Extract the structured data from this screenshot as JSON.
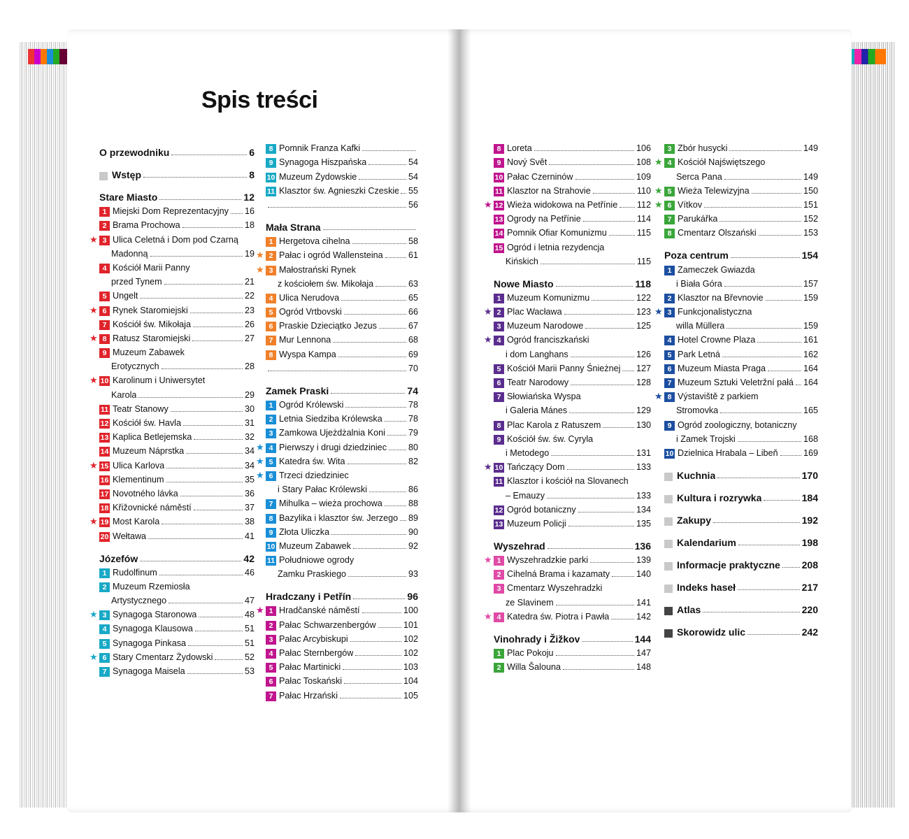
{
  "title": "Spis treści",
  "colors": {
    "stare": "#e0242b",
    "jozefow": "#19a9c6",
    "praga": "#1a8fd6",
    "mala": "#f0802a",
    "hrad": "#c0158e",
    "loreta": "#c0158e",
    "nowe": "#5a2d8e",
    "wysz": "#e04aa6",
    "vino": "#3aa63a",
    "poza": "#1d4fa0",
    "zizkov": "#3aa63a",
    "grey": "#c8c8c8",
    "dark": "#444444"
  },
  "columns": [
    [
      {
        "kind": "sec",
        "sq": "none",
        "text": "O przewodniku",
        "page": "6",
        "first": true
      },
      {
        "kind": "sec",
        "sq": "grey",
        "text": "Wstęp",
        "page": "8"
      },
      {
        "kind": "sec",
        "sq": "none",
        "text": "Stare Miasto",
        "page": "12"
      },
      {
        "kind": "e",
        "c": "stare",
        "n": "1",
        "text": "Miejski Dom Reprezentacyjny",
        "page": "16"
      },
      {
        "kind": "e",
        "c": "stare",
        "n": "2",
        "text": "Brama Prochowa",
        "page": "18"
      },
      {
        "kind": "e",
        "c": "stare",
        "n": "3",
        "star": "★",
        "text": "Ulica Celetná i Dom pod Czarną",
        "text2": "Madonną",
        "page": "19"
      },
      {
        "kind": "e",
        "c": "stare",
        "n": "4",
        "text": "Kościół Marii Panny",
        "text2": "przed Tynem",
        "page": "21"
      },
      {
        "kind": "e",
        "c": "stare",
        "n": "5",
        "text": "Ungelt",
        "page": "22"
      },
      {
        "kind": "e",
        "c": "stare",
        "n": "6",
        "star": "★",
        "text": "Rynek Staromiejski",
        "page": "23"
      },
      {
        "kind": "e",
        "c": "stare",
        "n": "7",
        "text": "Kościół św. Mikołaja",
        "page": "26"
      },
      {
        "kind": "e",
        "c": "stare",
        "n": "8",
        "star": "★",
        "text": "Ratusz Staromiejski",
        "page": "27"
      },
      {
        "kind": "e",
        "c": "stare",
        "n": "9",
        "text": "Muzeum Zabawek",
        "text2": "Erotycznych",
        "page": "28"
      },
      {
        "kind": "e",
        "c": "stare",
        "n": "10",
        "star": "★",
        "text": "Karolinum i Uniwersytet",
        "text2": "Karola",
        "page": "29"
      },
      {
        "kind": "e",
        "c": "stare",
        "n": "11",
        "text": "Teatr Stanowy",
        "page": "30"
      },
      {
        "kind": "e",
        "c": "stare",
        "n": "12",
        "text": "Kościół św. Havla",
        "page": "31"
      },
      {
        "kind": "e",
        "c": "stare",
        "n": "13",
        "text": "Kaplica Betlejemska",
        "page": "32"
      },
      {
        "kind": "e",
        "c": "stare",
        "n": "14",
        "text": "Muzeum Náprstka",
        "page": "34"
      },
      {
        "kind": "e",
        "c": "stare",
        "n": "15",
        "star": "★",
        "text": "Ulica Karlova",
        "page": "34"
      },
      {
        "kind": "e",
        "c": "stare",
        "n": "16",
        "text": "Klementinum",
        "page": "35"
      },
      {
        "kind": "e",
        "c": "stare",
        "n": "17",
        "text": "Novotného lávka",
        "page": "36"
      },
      {
        "kind": "e",
        "c": "stare",
        "n": "18",
        "text": "Křižovnické náměstí",
        "page": "37"
      },
      {
        "kind": "e",
        "c": "stare",
        "n": "19",
        "star": "★",
        "text": "Most Karola",
        "page": "38"
      },
      {
        "kind": "e",
        "c": "stare",
        "n": "20",
        "text": "Wełtawa",
        "page": "41"
      },
      {
        "kind": "sec",
        "sq": "none",
        "text": "Józefów",
        "page": "42"
      },
      {
        "kind": "e",
        "c": "jozefow",
        "n": "1",
        "text": "Rudolfinum",
        "page": "46"
      },
      {
        "kind": "e",
        "c": "jozefow",
        "n": "2",
        "text": "Muzeum Rzemiosła",
        "text2": "Artystycznego",
        "page": "47"
      },
      {
        "kind": "e",
        "c": "jozefow",
        "n": "3",
        "star": "★",
        "text": "Synagoga Staronowa",
        "page": "48"
      },
      {
        "kind": "e",
        "c": "jozefow",
        "n": "4",
        "text": "Synagoga Klausowa",
        "page": "51"
      },
      {
        "kind": "e",
        "c": "jozefow",
        "n": "5",
        "text": "Synagoga Pinkasa",
        "page": "51"
      },
      {
        "kind": "e",
        "c": "jozefow",
        "n": "6",
        "star": "★",
        "text": "Stary Cmentarz Żydowski",
        "page": "52"
      },
      {
        "kind": "e",
        "c": "jozefow",
        "n": "7",
        "text": "Synagoga Maisela",
        "page": "53"
      }
    ],
    [
      {
        "kind": "e",
        "c": "jozefow",
        "n": "8",
        "text": "Pomnik Franza Kafki",
        "page": ""
      },
      {
        "kind": "e",
        "c": "jozefow",
        "n": "9",
        "text": "Synagoga Hiszpańska",
        "page": "54"
      },
      {
        "kind": "e",
        "c": "jozefow",
        "n": "10",
        "text": "Muzeum Żydowskie",
        "page": "54"
      },
      {
        "kind": "e",
        "c": "jozefow",
        "n": "11",
        "text": "Klasztor św. Agnieszki Czeskiej",
        "page": "55"
      },
      {
        "kind": "e",
        "c": "jozefow",
        "n": "",
        "text": "",
        "page": "56",
        "blank": true
      },
      {
        "kind": "sec",
        "sq": "none",
        "text": "Mała Strana",
        "page": ""
      },
      {
        "kind": "e",
        "c": "mala",
        "n": "1",
        "text": "Hergetova cihelna",
        "page": "58"
      },
      {
        "kind": "e",
        "c": "mala",
        "n": "2",
        "star": "★",
        "text": "Pałac i ogród Wallensteina",
        "page": "61"
      },
      {
        "kind": "e",
        "c": "mala",
        "n": "3",
        "star": "★",
        "text": "Małostrański Rynek",
        "text2": "z kościołem św. Mikołaja",
        "page": "63"
      },
      {
        "kind": "e",
        "c": "mala",
        "n": "4",
        "text": "Ulica Nerudova",
        "page": "65"
      },
      {
        "kind": "e",
        "c": "mala",
        "n": "5",
        "text": "Ogród Vrtbovski",
        "page": "66"
      },
      {
        "kind": "e",
        "c": "mala",
        "n": "6",
        "text": "Praskie Dzieciątko Jezus",
        "page": "67"
      },
      {
        "kind": "e",
        "c": "mala",
        "n": "7",
        "text": "Mur Lennona",
        "page": "68"
      },
      {
        "kind": "e",
        "c": "mala",
        "n": "8",
        "text": "Wyspa Kampa",
        "page": "69"
      },
      {
        "kind": "e",
        "c": "mala",
        "n": "",
        "text": "",
        "page": "70",
        "blank": true
      },
      {
        "kind": "sec",
        "sq": "none",
        "text": "Zamek Praski",
        "page": "74"
      },
      {
        "kind": "e",
        "c": "praga",
        "n": "1",
        "text": "Ogród Królewski",
        "page": "78"
      },
      {
        "kind": "e",
        "c": "praga",
        "n": "2",
        "text": "Letnia Siedziba Królewska",
        "page": "78"
      },
      {
        "kind": "e",
        "c": "praga",
        "n": "3",
        "text": "Zamkowa Ujeżdżalnia Koni",
        "page": "79"
      },
      {
        "kind": "e",
        "c": "praga",
        "n": "4",
        "star": "★",
        "text": "Pierwszy i drugi dziedziniec",
        "page": "80"
      },
      {
        "kind": "e",
        "c": "praga",
        "n": "5",
        "star": "★",
        "text": "Katedra św. Wita",
        "page": "82"
      },
      {
        "kind": "e",
        "c": "praga",
        "n": "6",
        "star": "★",
        "text": "Trzeci dziedziniec",
        "text2": "i Stary Pałac Królewski",
        "page": "86"
      },
      {
        "kind": "e",
        "c": "praga",
        "n": "7",
        "text": "Mihulka – wieża prochowa",
        "page": "88"
      },
      {
        "kind": "e",
        "c": "praga",
        "n": "8",
        "text": "Bazylika i klasztor św. Jerzego",
        "page": "89"
      },
      {
        "kind": "e",
        "c": "praga",
        "n": "9",
        "text": "Złota Uliczka",
        "page": "90"
      },
      {
        "kind": "e",
        "c": "praga",
        "n": "10",
        "text": "Muzeum Zabawek",
        "page": "92"
      },
      {
        "kind": "e",
        "c": "praga",
        "n": "11",
        "text": "Południowe ogrody",
        "text2": "Zamku Praskiego",
        "page": "93"
      },
      {
        "kind": "sec",
        "sq": "none",
        "text": "Hradczany i Petřín",
        "page": "96"
      },
      {
        "kind": "e",
        "c": "hrad",
        "n": "1",
        "star": "★",
        "text": "Hradčanské náměstí",
        "page": "100"
      },
      {
        "kind": "e",
        "c": "hrad",
        "n": "2",
        "text": "Pałac Schwarzenbergów",
        "page": "101"
      },
      {
        "kind": "e",
        "c": "hrad",
        "n": "3",
        "text": "Pałac Arcybiskupi",
        "page": "102"
      },
      {
        "kind": "e",
        "c": "hrad",
        "n": "4",
        "text": "Pałac Sternbergów",
        "page": "102"
      },
      {
        "kind": "e",
        "c": "hrad",
        "n": "5",
        "text": "Pałac Martinicki",
        "page": "103"
      },
      {
        "kind": "e",
        "c": "hrad",
        "n": "6",
        "text": "Pałac Toskański",
        "page": "104"
      },
      {
        "kind": "e",
        "c": "hrad",
        "n": "7",
        "text": "Pałac Hrzański",
        "page": "105"
      }
    ],
    [
      {
        "kind": "e",
        "c": "loreta",
        "n": "8",
        "text": "Loreta",
        "page": "106"
      },
      {
        "kind": "e",
        "c": "loreta",
        "n": "9",
        "text": "Nový Svět",
        "page": "108"
      },
      {
        "kind": "e",
        "c": "loreta",
        "n": "10",
        "text": "Pałac Czerninów",
        "page": "109"
      },
      {
        "kind": "e",
        "c": "loreta",
        "n": "11",
        "text": "Klasztor na Strahovie",
        "page": "110"
      },
      {
        "kind": "e",
        "c": "loreta",
        "n": "12",
        "star": "★",
        "text": "Wieża widokowa na Petřínie",
        "page": "112"
      },
      {
        "kind": "e",
        "c": "loreta",
        "n": "13",
        "text": "Ogrody na Petřínie",
        "page": "114"
      },
      {
        "kind": "e",
        "c": "loreta",
        "n": "14",
        "text": "Pomnik Ofiar Komunizmu",
        "page": "115"
      },
      {
        "kind": "e",
        "c": "loreta",
        "n": "15",
        "text": "Ogród i letnia rezydencja",
        "text2": "Kińskich",
        "page": "115"
      },
      {
        "kind": "sec",
        "sq": "none",
        "text": "Nowe Miasto",
        "page": "118"
      },
      {
        "kind": "e",
        "c": "nowe",
        "n": "1",
        "text": "Muzeum Komunizmu",
        "page": "122"
      },
      {
        "kind": "e",
        "c": "nowe",
        "n": "2",
        "star": "★",
        "text": "Plac Wacława",
        "page": "123"
      },
      {
        "kind": "e",
        "c": "nowe",
        "n": "3",
        "text": "Muzeum Narodowe",
        "page": "125"
      },
      {
        "kind": "e",
        "c": "nowe",
        "n": "4",
        "star": "★",
        "text": "Ogród franciszkański",
        "text2": "i dom Langhans",
        "page": "126"
      },
      {
        "kind": "e",
        "c": "nowe",
        "n": "5",
        "text": "Kościół Marii Panny Śnieżnej",
        "page": "127"
      },
      {
        "kind": "e",
        "c": "nowe",
        "n": "6",
        "text": "Teatr Narodowy",
        "page": "128"
      },
      {
        "kind": "e",
        "c": "nowe",
        "n": "7",
        "text": "Słowiańska Wyspa",
        "text2": "i Galeria Mánes",
        "page": "129"
      },
      {
        "kind": "e",
        "c": "nowe",
        "n": "8",
        "text": "Plac Karola z Ratuszem",
        "page": "130"
      },
      {
        "kind": "e",
        "c": "nowe",
        "n": "9",
        "text": "Kościół św. św. Cyryla",
        "text2": "i Metodego",
        "page": "131"
      },
      {
        "kind": "e",
        "c": "nowe",
        "n": "10",
        "star": "★",
        "text": "Tańczący Dom",
        "page": "133"
      },
      {
        "kind": "e",
        "c": "nowe",
        "n": "11",
        "text": "Klasztor i kościół na Slovanech",
        "text2": "– Emauzy",
        "page": "133"
      },
      {
        "kind": "e",
        "c": "nowe",
        "n": "12",
        "text": "Ogród botaniczny",
        "page": "134"
      },
      {
        "kind": "e",
        "c": "nowe",
        "n": "13",
        "text": "Muzeum Policji",
        "page": "135"
      },
      {
        "kind": "sec",
        "sq": "none",
        "text": "Wyszehrad",
        "page": "136"
      },
      {
        "kind": "e",
        "c": "wysz",
        "n": "1",
        "star": "★",
        "text": "Wyszehradzkie parki",
        "page": "139"
      },
      {
        "kind": "e",
        "c": "wysz",
        "n": "2",
        "text": "Cihelná Brama i kazamaty",
        "page": "140"
      },
      {
        "kind": "e",
        "c": "wysz",
        "n": "3",
        "text": "Cmentarz Wyszehradzki",
        "text2": "ze Slavinem",
        "page": "141"
      },
      {
        "kind": "e",
        "c": "wysz",
        "n": "4",
        "star": "★",
        "text": "Katedra św. Piotra i Pawła",
        "page": "142"
      },
      {
        "kind": "sec",
        "sq": "none",
        "text": "Vinohrady i Žižkov",
        "page": "144"
      },
      {
        "kind": "e",
        "c": "vino",
        "n": "1",
        "text": "Plac Pokoju",
        "page": "147"
      },
      {
        "kind": "e",
        "c": "vino",
        "n": "2",
        "text": "Willa Šalouna",
        "page": "148"
      }
    ],
    [
      {
        "kind": "e",
        "c": "zizkov",
        "n": "3",
        "text": "Zbór husycki",
        "page": "149"
      },
      {
        "kind": "e",
        "c": "zizkov",
        "n": "4",
        "star": "★",
        "text": "Kościół Najświętszego",
        "text2": "Serca Pana",
        "page": "149"
      },
      {
        "kind": "e",
        "c": "zizkov",
        "n": "5",
        "star": "★",
        "text": "Wieża Telewizyjna",
        "page": "150"
      },
      {
        "kind": "e",
        "c": "zizkov",
        "n": "6",
        "star": "★",
        "text": "Vítkov",
        "page": "151"
      },
      {
        "kind": "e",
        "c": "zizkov",
        "n": "7",
        "text": "Parukářka",
        "page": "152"
      },
      {
        "kind": "e",
        "c": "zizkov",
        "n": "8",
        "text": "Cmentarz Olszański",
        "page": "153"
      },
      {
        "kind": "sec",
        "sq": "none",
        "text": "Poza centrum",
        "page": "154"
      },
      {
        "kind": "e",
        "c": "poza",
        "n": "1",
        "text": "Zameczek Gwiazda",
        "text2": "i Biała Góra",
        "page": "157"
      },
      {
        "kind": "e",
        "c": "poza",
        "n": "2",
        "text": "Klasztor na Břevnovie",
        "page": "159"
      },
      {
        "kind": "e",
        "c": "poza",
        "n": "3",
        "star": "★",
        "text": "Funkcjonalistyczna",
        "text2": "willa Müllera",
        "page": "159"
      },
      {
        "kind": "e",
        "c": "poza",
        "n": "4",
        "text": "Hotel Crowne Plaza",
        "page": "161"
      },
      {
        "kind": "e",
        "c": "poza",
        "n": "5",
        "text": "Park Letná",
        "page": "162"
      },
      {
        "kind": "e",
        "c": "poza",
        "n": "6",
        "text": "Muzeum Miasta Praga",
        "page": "164"
      },
      {
        "kind": "e",
        "c": "poza",
        "n": "7",
        "text": "Muzeum Sztuki Veletržní pałác",
        "page": "164"
      },
      {
        "kind": "e",
        "c": "poza",
        "n": "8",
        "star": "★",
        "text": "Výstaviště z parkiem",
        "text2": "Stromovka",
        "page": "165"
      },
      {
        "kind": "e",
        "c": "poza",
        "n": "9",
        "text": "Ogród zoologiczny, botaniczny",
        "text2": "i Zamek Trojski",
        "page": "168"
      },
      {
        "kind": "e",
        "c": "poza",
        "n": "10",
        "text": "Dzielnica Hrabala – Libeň",
        "page": "169"
      },
      {
        "kind": "sec",
        "sq": "grey",
        "text": "Kuchnia",
        "page": "170"
      },
      {
        "kind": "sec",
        "sq": "grey",
        "text": "Kultura i rozrywka",
        "page": "184"
      },
      {
        "kind": "sec",
        "sq": "grey",
        "text": "Zakupy",
        "page": "192"
      },
      {
        "kind": "sec",
        "sq": "grey",
        "text": "Kalendarium",
        "page": "198"
      },
      {
        "kind": "sec",
        "sq": "grey",
        "text": "Informacje praktyczne",
        "page": "208"
      },
      {
        "kind": "sec",
        "sq": "grey",
        "text": "Indeks haseł",
        "page": "217"
      },
      {
        "kind": "sec",
        "sq": "dark",
        "text": "Atlas",
        "page": "220"
      },
      {
        "kind": "sec",
        "sq": "dark",
        "text": "Skorowidz ulic",
        "page": "242"
      }
    ]
  ]
}
